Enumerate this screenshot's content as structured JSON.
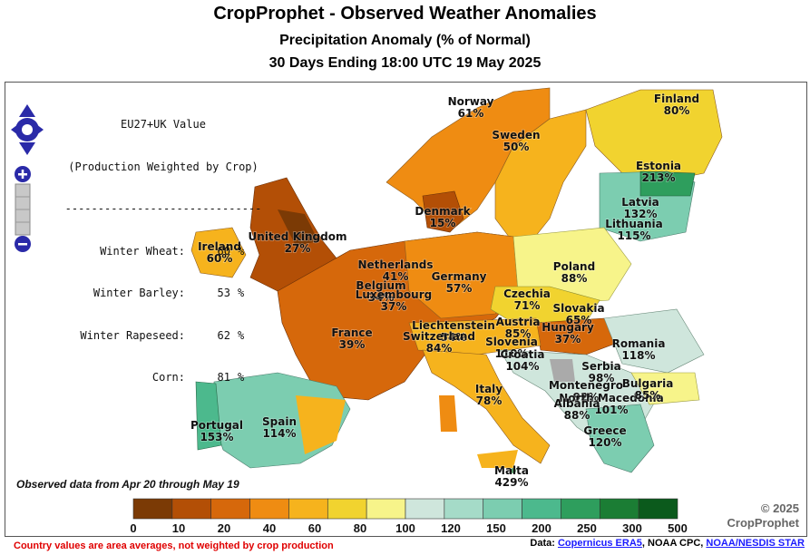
{
  "header": {
    "title": "CropProphet - Observed Weather Anomalies",
    "subtitle": "Precipitation Anomaly (% of Normal)",
    "period": "30 Days Ending 18:00 UTC 19 May 2025"
  },
  "stats": {
    "heading_line1": "EU27+UK Value",
    "heading_line2": "(Production Weighted by Crop)",
    "divider": "------------------------------",
    "rows": [
      {
        "crop": "Winter Wheat:",
        "value": "60",
        "unit": "%"
      },
      {
        "crop": "Winter Barley:",
        "value": "53",
        "unit": "%"
      },
      {
        "crop": "Winter Rapeseed:",
        "value": "62",
        "unit": "%"
      },
      {
        "crop": "Corn:",
        "value": "81",
        "unit": "%"
      }
    ]
  },
  "countries": [
    {
      "name": "Norway",
      "value": "61%"
    },
    {
      "name": "Sweden",
      "value": "50%"
    },
    {
      "name": "Finland",
      "value": "80%"
    },
    {
      "name": "Estonia",
      "value": "213%"
    },
    {
      "name": "Latvia",
      "value": "132%"
    },
    {
      "name": "Lithuania",
      "value": "115%"
    },
    {
      "name": "Denmark",
      "value": "15%"
    },
    {
      "name": "United Kingdom",
      "value": "27%"
    },
    {
      "name": "Ireland",
      "value": "60%"
    },
    {
      "name": "Netherlands",
      "value": "41%"
    },
    {
      "name": "Belgium",
      "value": "34%"
    },
    {
      "name": "Luxembourg",
      "value": "37%"
    },
    {
      "name": "Germany",
      "value": "57%"
    },
    {
      "name": "Poland",
      "value": "88%"
    },
    {
      "name": "Czechia",
      "value": "71%"
    },
    {
      "name": "Slovakia",
      "value": "65%"
    },
    {
      "name": "France",
      "value": "39%"
    },
    {
      "name": "Liechtenstein",
      "value": "54%"
    },
    {
      "name": "Switzerland",
      "value": "84%"
    },
    {
      "name": "Austria",
      "value": "85%"
    },
    {
      "name": "Hungary",
      "value": "37%"
    },
    {
      "name": "Slovenia",
      "value": "110%"
    },
    {
      "name": "Croatia",
      "value": "104%"
    },
    {
      "name": "Romania",
      "value": "118%"
    },
    {
      "name": "Serbia",
      "value": "98%"
    },
    {
      "name": "Montenegro",
      "value": "92%"
    },
    {
      "name": "North Macedonia",
      "value": "101%"
    },
    {
      "name": "Bulgaria",
      "value": "85%"
    },
    {
      "name": "Albania",
      "value": "88%"
    },
    {
      "name": "Greece",
      "value": "120%"
    },
    {
      "name": "Italy",
      "value": "78%"
    },
    {
      "name": "Spain",
      "value": "114%"
    },
    {
      "name": "Portugal",
      "value": "153%"
    },
    {
      "name": "Malta",
      "value": "429%"
    }
  ],
  "legend": {
    "colors": [
      "#7b3a05",
      "#b34f06",
      "#d6680b",
      "#ef8c12",
      "#f6b31d",
      "#f1d32f",
      "#f7f48a",
      "#cfe6dc",
      "#a5dbc8",
      "#7ccdb0",
      "#4cb98d",
      "#2e9e5d",
      "#1b7d34",
      "#0b5a1c"
    ],
    "ticks": [
      "0",
      "10",
      "20",
      "40",
      "60",
      "80",
      "100",
      "120",
      "150",
      "200",
      "250",
      "300",
      "500"
    ]
  },
  "notes": {
    "observed_range": "Observed data from Apr 20 through May 19",
    "copyright_line1": "© 2025",
    "copyright_line2": "CropProphet",
    "disclaimer": "Country values are area averages, not weighted by crop production",
    "source_prefix": "Data:",
    "source_link1": "Copernicus ERA5",
    "source_mid": ", NOAA CPC, ",
    "source_link2": "NOAA/NESDIS STAR"
  },
  "controls": {
    "pan_icon": "pan-arrows-icon",
    "zoom_in_icon": "zoom-in-icon",
    "zoom_out_icon": "zoom-out-icon"
  }
}
